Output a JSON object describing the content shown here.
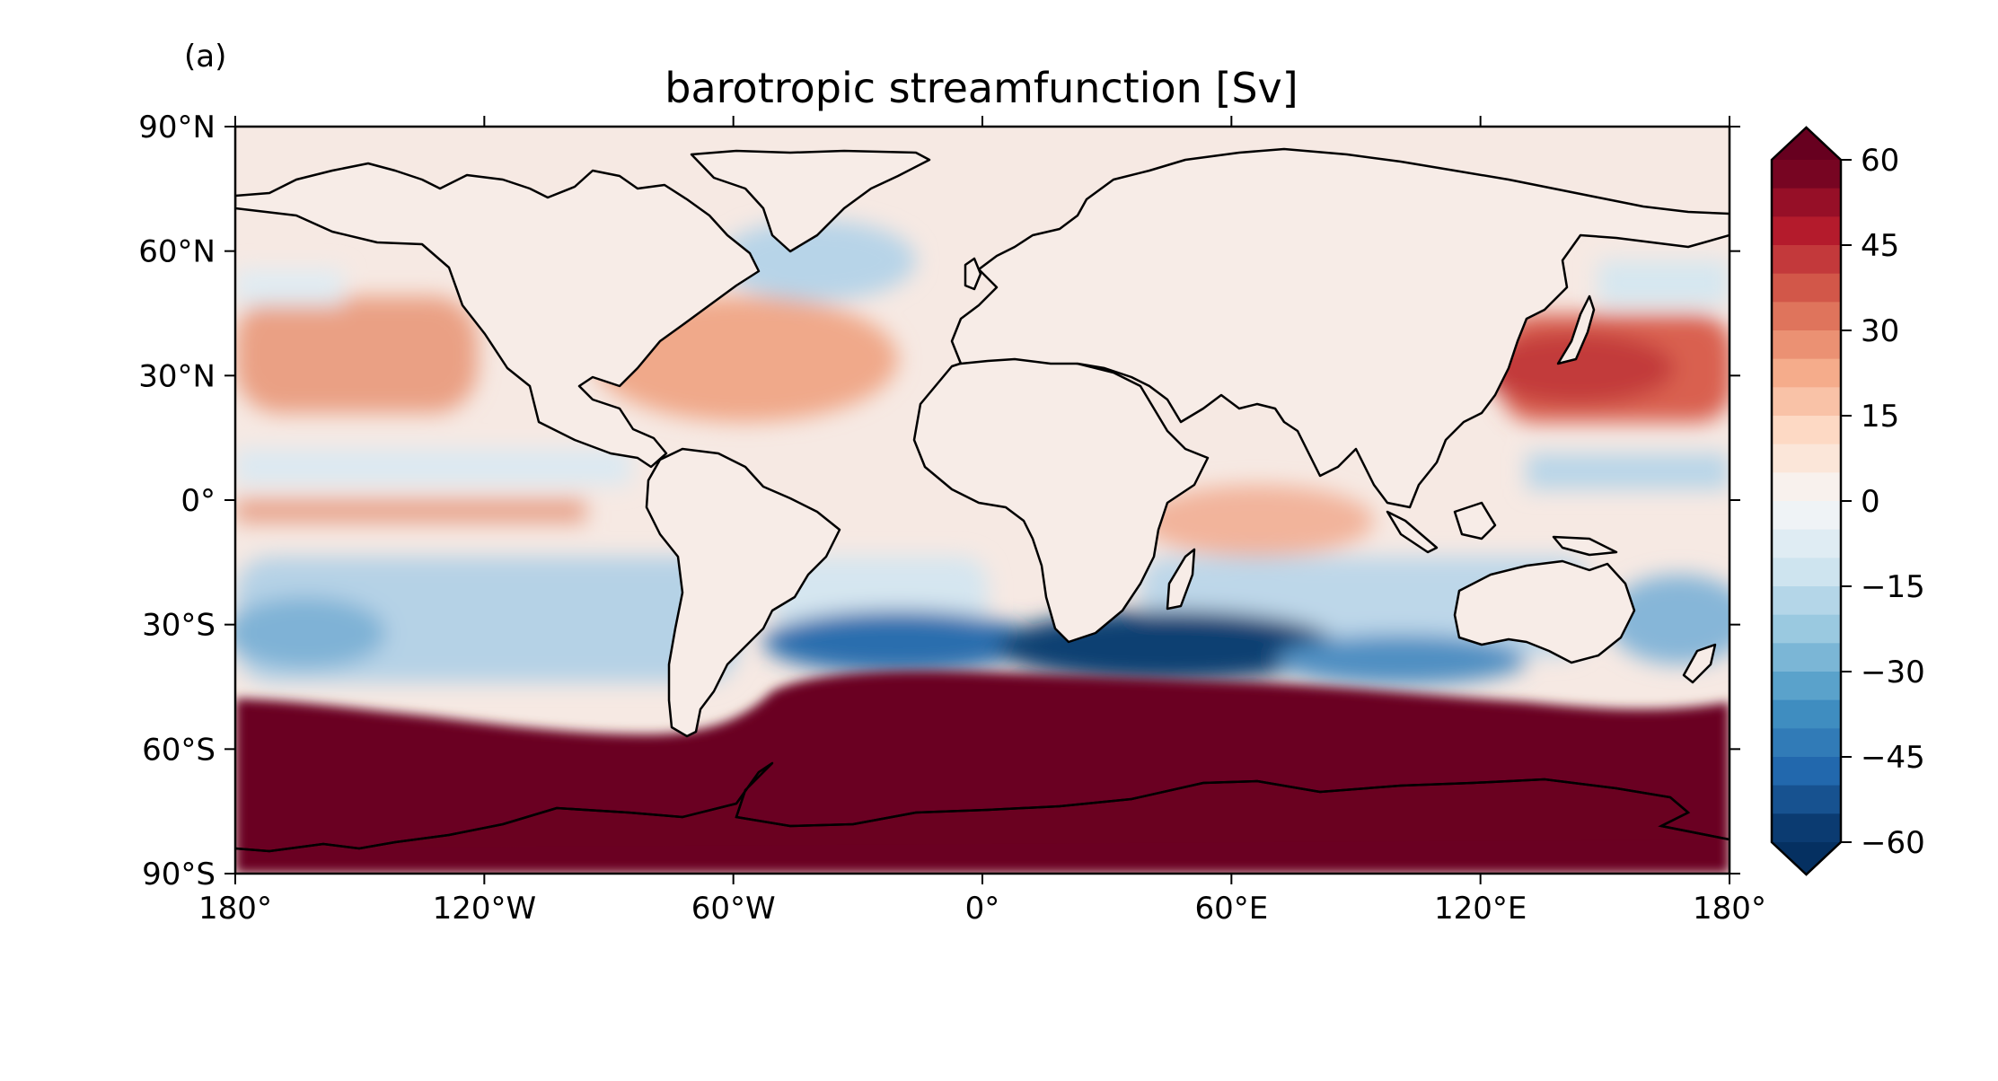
{
  "panel_label": "(a)",
  "title": "barotropic streamfunction [Sv]",
  "map": {
    "projection": "PlateCarree",
    "lon_ticks": [
      "180°",
      "120°W",
      "60°W",
      "0°",
      "60°E",
      "120°E",
      "180°"
    ],
    "lat_ticks": [
      "90°N",
      "60°N",
      "30°N",
      "0°",
      "30°S",
      "60°S",
      "90°S"
    ],
    "coastlines": true,
    "colormap": "RdBu_r"
  },
  "colorbar": {
    "min": -60,
    "max": 60,
    "step": 5,
    "extend": "both",
    "tick_labels": [
      "60",
      "45",
      "30",
      "15",
      "0",
      "−15",
      "−30",
      "−45",
      "−60"
    ]
  },
  "features": [
    {
      "name": "Southern Ocean / Antarctic Circumpolar region",
      "value": 60
    },
    {
      "name": "North Pacific subtropical gyre (Kuroshio)",
      "value": 40
    },
    {
      "name": "North Atlantic subtropical gyre (Gulf Stream)",
      "value": 22
    },
    {
      "name": "Agulhas / south of Africa",
      "value": -60
    },
    {
      "name": "South Pacific gyre",
      "value": -25
    }
  ]
}
